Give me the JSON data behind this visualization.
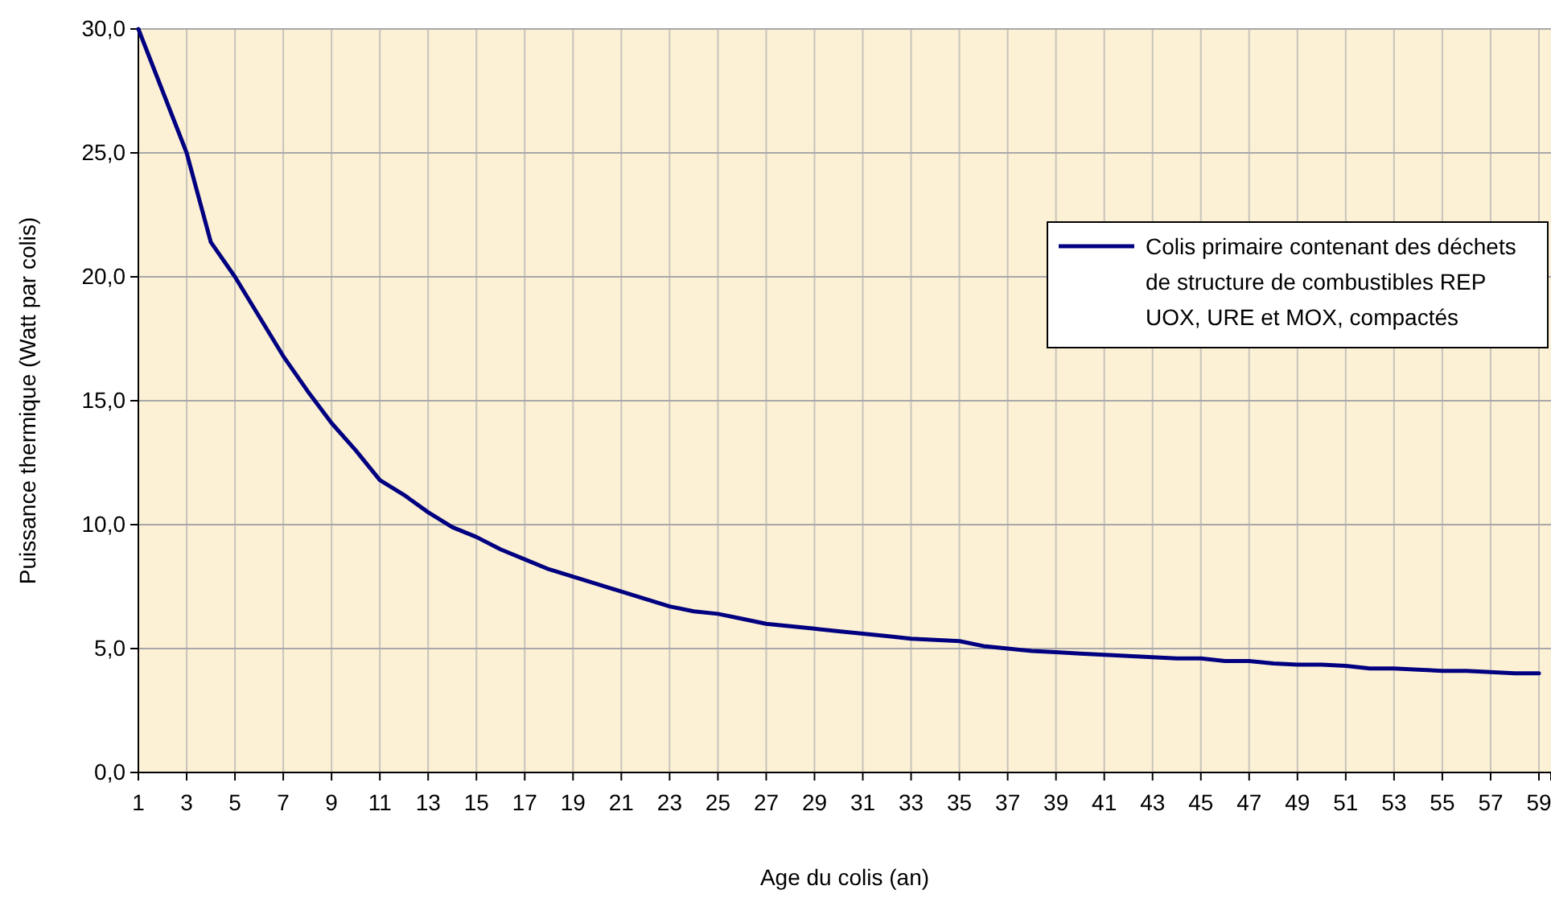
{
  "chart_data": {
    "type": "line",
    "xlabel": "Age du colis (an)",
    "ylabel": "Puissance thermique (Watt par colis)",
    "x": [
      1,
      2,
      3,
      4,
      5,
      6,
      7,
      8,
      9,
      10,
      11,
      12,
      13,
      14,
      15,
      16,
      17,
      18,
      19,
      20,
      21,
      22,
      23,
      24,
      25,
      26,
      27,
      28,
      29,
      30,
      31,
      32,
      33,
      34,
      35,
      36,
      37,
      38,
      39,
      40,
      41,
      42,
      43,
      44,
      45,
      46,
      47,
      48,
      49,
      50,
      51,
      52,
      53,
      54,
      55,
      56,
      57,
      58,
      59
    ],
    "series": [
      {
        "name": "Colis primaire contenant des déchets de structure de combustibles REP UOX, URE et MOX, compactés",
        "color": "#000080",
        "values": [
          30.0,
          27.5,
          25.0,
          21.4,
          20.0,
          18.4,
          16.8,
          15.4,
          14.1,
          13.0,
          11.8,
          11.2,
          10.5,
          9.9,
          9.5,
          9.0,
          8.6,
          8.2,
          7.9,
          7.6,
          7.3,
          7.0,
          6.7,
          6.5,
          6.4,
          6.2,
          6.0,
          5.9,
          5.8,
          5.7,
          5.6,
          5.5,
          5.4,
          5.35,
          5.3,
          5.1,
          5.0,
          4.9,
          4.85,
          4.8,
          4.75,
          4.7,
          4.65,
          4.6,
          4.6,
          4.5,
          4.5,
          4.4,
          4.35,
          4.35,
          4.3,
          4.2,
          4.2,
          4.15,
          4.1,
          4.1,
          4.05,
          4.0,
          4.0
        ]
      }
    ],
    "xlim": [
      1,
      59.5
    ],
    "xticks": [
      1,
      3,
      5,
      7,
      9,
      11,
      13,
      15,
      17,
      19,
      21,
      23,
      25,
      27,
      29,
      31,
      33,
      35,
      37,
      39,
      41,
      43,
      45,
      47,
      49,
      51,
      53,
      55,
      57,
      59
    ],
    "ylim": [
      0,
      30
    ],
    "yticks": [
      {
        "value": 0,
        "label": "0,0"
      },
      {
        "value": 5,
        "label": "5,0"
      },
      {
        "value": 10,
        "label": "10,0"
      },
      {
        "value": 15,
        "label": "15,0"
      },
      {
        "value": 20,
        "label": "20,0"
      },
      {
        "value": 25,
        "label": "25,0"
      },
      {
        "value": 30,
        "label": "30,0"
      }
    ],
    "grid": true,
    "legend": "right"
  }
}
